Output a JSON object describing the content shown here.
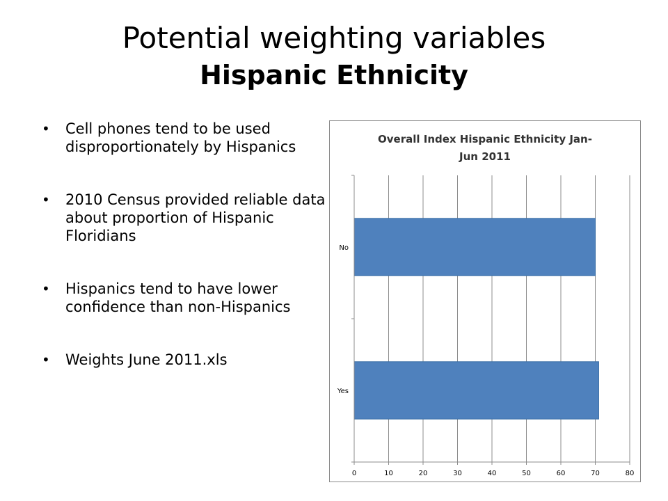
{
  "slide": {
    "title_line1": "Potential weighting variables",
    "title_line2": "Hispanic Ethnicity",
    "bullets": [
      "Cell phones tend to be used disproportionately by Hispanics",
      "2010 Census provided reliable data about proportion of Hispanic Floridians",
      "Hispanics tend to have lower confidence than non-Hispanics",
      "Weights June 2011.xls"
    ]
  },
  "chart_data": {
    "type": "bar",
    "orientation": "horizontal",
    "title_lines": [
      "Overall Index Hispanic Ethnicity Jan-",
      "Jun 2011"
    ],
    "categories": [
      "No",
      "Yes"
    ],
    "values": [
      70,
      71
    ],
    "xlim": [
      0,
      80
    ],
    "xticks": [
      0,
      10,
      20,
      30,
      40,
      50,
      60,
      70,
      80
    ],
    "grid": true,
    "legend": "none",
    "bar_color": "#4f81bd"
  }
}
